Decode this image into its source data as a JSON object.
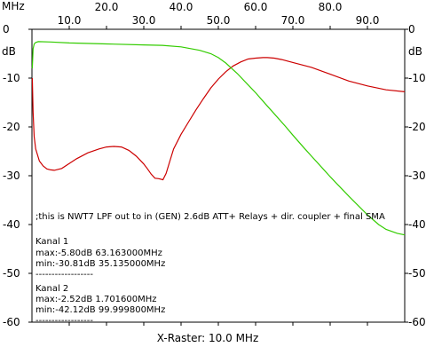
{
  "chart_data": {
    "type": "line",
    "x_unit": "MHz",
    "y_unit": "dB",
    "xlim": [
      0.1,
      100.0
    ],
    "ylim": [
      -60,
      0
    ],
    "grid": false,
    "x_ticks": [
      10.0,
      20.0,
      30.0,
      40.0,
      50.0,
      60.0,
      70.0,
      80.0,
      90.0
    ],
    "x_tick_labels_bottom": [
      "10.0",
      "30.0",
      "50.0",
      "70.0",
      "90.0"
    ],
    "x_tick_labels_top": [
      "20.0",
      "40.0",
      "60.0",
      "80.0"
    ],
    "y_ticks": [
      0,
      -10,
      -20,
      -30,
      -40,
      -50,
      -60
    ],
    "y_tick_labels": [
      "0",
      "-10",
      "-20",
      "-30",
      "-40",
      "-50",
      "-60"
    ],
    "xlabel": "X-Raster: 10.0 MHz",
    "annotations": {
      "comment": ";this is NWT7 LPF out to in (GEN) 2.6dB ATT+ Relays + dir. coupler + final SMA",
      "kanal1_title": "Kanal 1",
      "kanal1_max": "max:-5.80dB 63.163000MHz",
      "kanal1_min": "min:-30.81dB 35.135000MHz",
      "kanal1_sep": "------------------",
      "kanal2_title": "Kanal 2",
      "kanal2_max": "max:-2.52dB 1.701600MHz",
      "kanal2_min": "min:-42.12dB 99.999800MHz",
      "kanal2_sep": "------------------"
    },
    "series": [
      {
        "color": "#cc0000",
        "x": [
          0.1,
          0.3,
          0.6,
          1,
          2,
          3,
          4,
          5,
          6,
          8,
          10,
          12,
          15,
          18,
          20,
          22,
          24,
          26,
          28,
          30,
          31,
          32,
          33,
          34,
          35.135,
          36,
          37,
          38,
          40,
          42,
          44,
          46,
          48,
          50,
          52,
          54,
          56,
          58,
          60,
          62,
          63.163,
          65,
          67,
          70,
          75,
          80,
          85,
          90,
          95,
          100
        ],
        "y": [
          -10,
          -17,
          -22,
          -24.5,
          -27,
          -28,
          -28.6,
          -28.8,
          -28.9,
          -28.5,
          -27.5,
          -26.5,
          -25.3,
          -24.5,
          -24.1,
          -24.0,
          -24.1,
          -24.8,
          -26,
          -27.6,
          -28.6,
          -29.7,
          -30.5,
          -30.6,
          -30.81,
          -29.5,
          -27.0,
          -24.5,
          -21.5,
          -19.0,
          -16.5,
          -14.2,
          -12.0,
          -10.2,
          -8.7,
          -7.5,
          -6.7,
          -6.1,
          -5.9,
          -5.8,
          -5.8,
          -5.9,
          -6.2,
          -6.8,
          -7.8,
          -9.2,
          -10.6,
          -11.6,
          -12.4,
          -12.8
        ]
      },
      {
        "color": "#33cc00",
        "x": [
          0.1,
          0.3,
          0.6,
          1.0,
          1.7016,
          5,
          10,
          20,
          30,
          35,
          40,
          45,
          48,
          50,
          52,
          55,
          58,
          60,
          63,
          65,
          68,
          70,
          73,
          75,
          78,
          80,
          83,
          85,
          88,
          90,
          93,
          95,
          98,
          99.9998
        ],
        "y": [
          -8,
          -4,
          -3.0,
          -2.7,
          -2.52,
          -2.6,
          -2.8,
          -3.0,
          -3.2,
          -3.3,
          -3.6,
          -4.3,
          -5.0,
          -5.8,
          -6.9,
          -9.0,
          -11.4,
          -13.0,
          -15.6,
          -17.3,
          -19.9,
          -21.7,
          -24.3,
          -26.0,
          -28.5,
          -30.2,
          -32.6,
          -34.2,
          -36.5,
          -38.0,
          -40.0,
          -41.0,
          -41.8,
          -42.12
        ]
      }
    ]
  }
}
